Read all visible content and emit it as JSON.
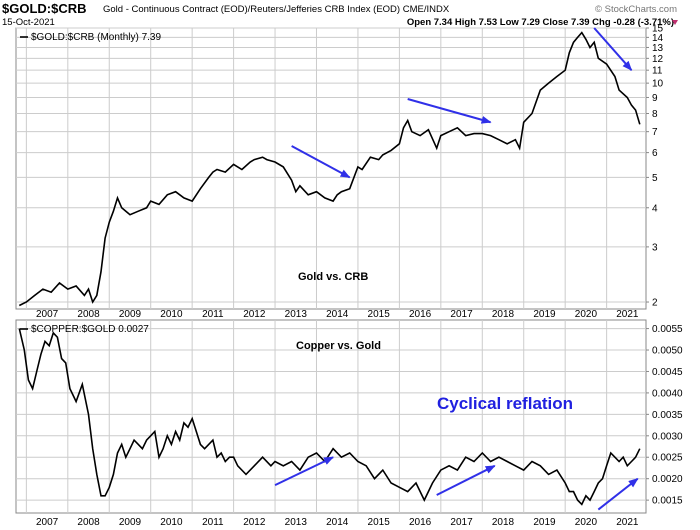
{
  "header": {
    "symbol": "$GOLD:$CRB",
    "description": "Gold - Continuous Contract (EOD)/Reuters/Jefferies CRB Index (EOD) CME/INDX",
    "date": "15-Oct-2021",
    "watermark": "© StockCharts.com",
    "ohlc": "Open 7.34  High 7.53  Low 7.29  Close 7.39  Chg -0.28 (-3.71%)"
  },
  "chart_data": [
    {
      "type": "line",
      "legend": "$GOLD:$CRB (Monthly) 7.39",
      "title": "Gold vs. CRB",
      "scale": "log",
      "ylim": [
        1.9,
        15
      ],
      "xlim": [
        2006.75,
        2021.95
      ],
      "yticks": [
        2,
        3,
        4,
        5,
        6,
        7,
        8,
        9,
        10,
        11,
        12,
        13,
        14,
        15
      ],
      "x": [
        2006.83,
        2007.0,
        2007.2,
        2007.4,
        2007.6,
        2007.8,
        2008.0,
        2008.2,
        2008.4,
        2008.5,
        2008.6,
        2008.7,
        2008.8,
        2008.9,
        2009.0,
        2009.1,
        2009.2,
        2009.3,
        2009.5,
        2009.7,
        2009.9,
        2010.0,
        2010.2,
        2010.4,
        2010.6,
        2010.8,
        2011.0,
        2011.2,
        2011.4,
        2011.5,
        2011.6,
        2011.8,
        2012.0,
        2012.2,
        2012.4,
        2012.5,
        2012.7,
        2012.8,
        2013.0,
        2013.2,
        2013.4,
        2013.5,
        2013.6,
        2013.8,
        2014.0,
        2014.2,
        2014.4,
        2014.5,
        2014.6,
        2014.8,
        2015.0,
        2015.1,
        2015.3,
        2015.5,
        2015.6,
        2015.8,
        2016.0,
        2016.1,
        2016.2,
        2016.3,
        2016.5,
        2016.7,
        2016.9,
        2017.0,
        2017.2,
        2017.4,
        2017.6,
        2017.8,
        2018.0,
        2018.2,
        2018.4,
        2018.6,
        2018.8,
        2018.9,
        2019.0,
        2019.2,
        2019.4,
        2019.6,
        2019.8,
        2020.0,
        2020.1,
        2020.2,
        2020.3,
        2020.4,
        2020.5,
        2020.6,
        2020.7,
        2020.8,
        2021.0,
        2021.2,
        2021.3,
        2021.5,
        2021.6,
        2021.7,
        2021.8
      ],
      "values": [
        1.95,
        2.0,
        2.1,
        2.2,
        2.15,
        2.3,
        2.2,
        2.25,
        2.1,
        2.2,
        2.0,
        2.1,
        2.5,
        3.2,
        3.6,
        3.9,
        4.3,
        4.0,
        3.8,
        3.9,
        4.0,
        4.2,
        4.1,
        4.4,
        4.5,
        4.3,
        4.2,
        4.6,
        5.0,
        5.2,
        5.3,
        5.2,
        5.5,
        5.3,
        5.6,
        5.7,
        5.8,
        5.7,
        5.6,
        5.4,
        4.9,
        4.5,
        4.7,
        4.4,
        4.5,
        4.3,
        4.2,
        4.4,
        4.5,
        4.6,
        5.4,
        5.3,
        5.8,
        5.7,
        5.9,
        6.1,
        6.4,
        7.2,
        7.6,
        7.0,
        6.8,
        7.1,
        6.2,
        6.8,
        7.0,
        7.2,
        6.8,
        6.9,
        6.9,
        6.8,
        6.6,
        6.4,
        6.6,
        6.2,
        7.5,
        8.0,
        9.5,
        10.0,
        10.5,
        11.0,
        12.5,
        13.5,
        14.0,
        14.5,
        13.8,
        13.0,
        13.5,
        12.0,
        11.5,
        10.5,
        9.5,
        9.0,
        8.5,
        8.2,
        7.39
      ],
      "xticks": [
        "2007",
        "2008",
        "2009",
        "2010",
        "2011",
        "2012",
        "2013",
        "2014",
        "2015",
        "2016",
        "2017",
        "2018",
        "2019",
        "2020",
        "2021"
      ]
    },
    {
      "type": "line",
      "legend": "$COPPER:$GOLD 0.0027",
      "title": "Copper vs. Gold",
      "annotation": "Cyclical reflation",
      "ylim": [
        0.0012,
        0.0057
      ],
      "xlim": [
        2006.75,
        2021.95
      ],
      "yticks": [
        "0.0015",
        "0.0020",
        "0.0025",
        "0.0030",
        "0.0035",
        "0.0040",
        "0.0045",
        "0.0050",
        "0.0055"
      ],
      "x": [
        2006.83,
        2006.95,
        2007.05,
        2007.15,
        2007.25,
        2007.35,
        2007.45,
        2007.55,
        2007.65,
        2007.75,
        2007.85,
        2007.95,
        2008.05,
        2008.2,
        2008.35,
        2008.5,
        2008.6,
        2008.7,
        2008.8,
        2008.9,
        2009.0,
        2009.1,
        2009.2,
        2009.3,
        2009.4,
        2009.5,
        2009.6,
        2009.7,
        2009.8,
        2009.9,
        2010.0,
        2010.1,
        2010.2,
        2010.3,
        2010.4,
        2010.5,
        2010.6,
        2010.7,
        2010.8,
        2010.9,
        2011.0,
        2011.1,
        2011.2,
        2011.3,
        2011.5,
        2011.6,
        2011.7,
        2011.8,
        2011.9,
        2012.0,
        2012.1,
        2012.3,
        2012.5,
        2012.7,
        2012.9,
        2013.0,
        2013.2,
        2013.4,
        2013.6,
        2013.8,
        2014.0,
        2014.2,
        2014.4,
        2014.6,
        2014.8,
        2015.0,
        2015.2,
        2015.4,
        2015.6,
        2015.8,
        2016.0,
        2016.2,
        2016.4,
        2016.6,
        2016.8,
        2017.0,
        2017.2,
        2017.4,
        2017.6,
        2017.8,
        2018.0,
        2018.2,
        2018.4,
        2018.6,
        2018.8,
        2019.0,
        2019.2,
        2019.4,
        2019.6,
        2019.8,
        2020.0,
        2020.1,
        2020.2,
        2020.3,
        2020.4,
        2020.5,
        2020.6,
        2020.7,
        2020.8,
        2020.9,
        2021.0,
        2021.1,
        2021.2,
        2021.3,
        2021.4,
        2021.5,
        2021.6,
        2021.7,
        2021.8
      ],
      "values": [
        0.0055,
        0.005,
        0.0043,
        0.0041,
        0.0045,
        0.0049,
        0.0052,
        0.0051,
        0.0054,
        0.0053,
        0.0048,
        0.0047,
        0.0041,
        0.0038,
        0.0042,
        0.0035,
        0.0027,
        0.0021,
        0.0016,
        0.0016,
        0.0018,
        0.0021,
        0.0026,
        0.0028,
        0.0025,
        0.0027,
        0.0029,
        0.0028,
        0.0027,
        0.0029,
        0.003,
        0.0031,
        0.0025,
        0.0027,
        0.003,
        0.0028,
        0.0031,
        0.0029,
        0.0033,
        0.0032,
        0.0034,
        0.0031,
        0.0028,
        0.0027,
        0.0029,
        0.0025,
        0.0026,
        0.0024,
        0.0025,
        0.0025,
        0.0023,
        0.0021,
        0.0023,
        0.0025,
        0.0023,
        0.0024,
        0.0023,
        0.0024,
        0.0022,
        0.0025,
        0.0026,
        0.0024,
        0.0027,
        0.0025,
        0.0026,
        0.0024,
        0.0023,
        0.002,
        0.0022,
        0.0019,
        0.0018,
        0.0017,
        0.0019,
        0.0015,
        0.0019,
        0.0022,
        0.0023,
        0.0022,
        0.0025,
        0.0024,
        0.0026,
        0.0024,
        0.0025,
        0.0024,
        0.0023,
        0.0022,
        0.0024,
        0.0023,
        0.0021,
        0.0022,
        0.0019,
        0.0017,
        0.0017,
        0.0015,
        0.0014,
        0.0016,
        0.0015,
        0.0017,
        0.0019,
        0.002,
        0.0023,
        0.0026,
        0.0025,
        0.0024,
        0.0025,
        0.0023,
        0.0024,
        0.0025,
        0.0027
      ],
      "xticks": [
        "2007",
        "2008",
        "2009",
        "2010",
        "2011",
        "2012",
        "2013",
        "2014",
        "2015",
        "2016",
        "2017",
        "2018",
        "2019",
        "2020",
        "2021"
      ]
    }
  ],
  "arrows": {
    "color": "#3030e8",
    "top": [
      {
        "from": [
          2013.4,
          6.3
        ],
        "to": [
          2014.8,
          5.0
        ]
      },
      {
        "from": [
          2016.2,
          8.9
        ],
        "to": [
          2018.2,
          7.5
        ]
      },
      {
        "from": [
          2020.7,
          15.0
        ],
        "to": [
          2021.6,
          11.0
        ]
      }
    ],
    "bottom": [
      {
        "from": [
          2013.0,
          0.00185
        ],
        "to": [
          2014.4,
          0.0025
        ]
      },
      {
        "from": [
          2016.9,
          0.00162
        ],
        "to": [
          2018.3,
          0.0023
        ]
      },
      {
        "from": [
          2020.8,
          0.00128
        ],
        "to": [
          2021.75,
          0.002
        ]
      }
    ]
  },
  "colors": {
    "grid": "#cccccc",
    "line": "#000000",
    "annotation": "#2020e0",
    "watermark": "#777777"
  }
}
